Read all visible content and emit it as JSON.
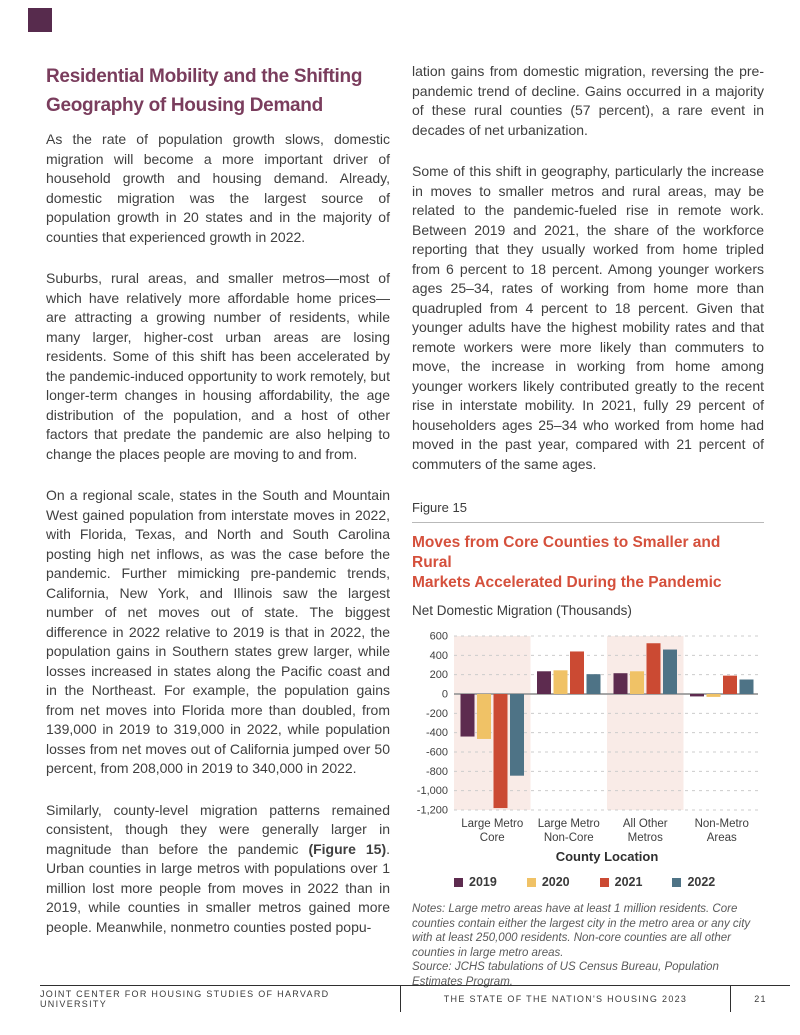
{
  "colors": {
    "heading": "#7a3d5d",
    "corner_marker": "#572b4d",
    "figure_title": "#d5503c",
    "body_text": "#3f3f3f"
  },
  "article": {
    "heading": {
      "line1": "Residential Mobility and the Shifting",
      "line2": "Geography of Housing Demand"
    },
    "left_column": {
      "p1": "As the rate of population growth slows, domestic migration will become a more important driver of household growth and housing demand. Already, domestic migration was the largest source of population growth in 20 states and in the majority of counties that experienced growth in 2022.",
      "p2": "Suburbs, rural areas, and smaller metros—most of which have relatively more affordable home prices—are attracting a growing number of residents, while many larger, higher-cost urban areas are losing residents. Some of this shift has been accelerated by the pandemic-induced opportunity to work remotely, but longer-term changes in housing affordability, the age distribution of the population, and a host of other factors that predate the pandemic are also helping to change the places people are moving to and from.",
      "p3": "On a regional scale, states in the South and Mountain West gained population from interstate moves in 2022, with Florida, Texas, and North and South Carolina posting high net inflows, as was the case before the pandemic. Further mimicking pre-pandemic trends, California, New York, and Illinois saw the largest number of net moves out of state. The biggest difference in 2022 relative to 2019 is that in 2022, the population gains in Southern states grew larger, while losses increased in states along the Pacific coast and in the Northeast. For example, the population gains from net moves into Florida more than doubled, from 139,000 in 2019 to 319,000 in 2022, while population losses from net moves out of California jumped over 50 percent, from 208,000 in 2019 to 340,000 in 2022.",
      "p4_pre": "Similarly, county-level migration patterns remained consistent, though they were generally larger in magnitude than before the pandemic ",
      "p4_bold": "(Figure 15)",
      "p4_post": ". Urban counties in large metros with populations over 1 million lost more people from moves in 2022 than in 2019, while counties in smaller metros gained more people. Meanwhile, nonmetro counties posted popu-"
    },
    "right_column": {
      "p1": "lation gains from domestic migration, reversing the pre-pandemic trend of decline. Gains occurred in a majority of these rural counties (57 percent), a rare event in decades of net urbanization.",
      "p2": "Some of this shift in geography, particularly the increase in moves to smaller metros and rural areas, may be related to the pandemic-fueled rise in remote work. Between 2019 and 2021, the share of the workforce reporting that they usually worked from home tripled from 6 percent to 18 percent. Among younger workers ages 25–34, rates of working from home more than quadrupled from 4 percent to 18 percent. Given that younger adults have the highest mobility rates and that remote workers were more likely than commuters to move, the increase in working from home among younger workers likely contributed greatly to the recent rise in interstate mobility. In 2021, fully 29 percent of householders ages 25–34 who worked from home had moved in the past year, compared with 21 percent of commuters of the same ages."
    }
  },
  "figure": {
    "label": "Figure 15",
    "title_line1": "Moves from Core Counties to Smaller and Rural",
    "title_line2": "Markets Accelerated During the Pandemic",
    "subtitle": "Net Domestic Migration (Thousands)",
    "notes": "Notes: Large metro areas have at least 1 million residents. Core counties contain either the largest city in the metro area or any city with at least 250,000 residents. Non-core counties are all other counties in large metro areas.",
    "source": "Source: JCHS tabulations of US Census Bureau, Population Estimates Program."
  },
  "chart_data": {
    "type": "bar",
    "title": "Moves from Core Counties to Smaller and Rural Markets Accelerated During the Pandemic",
    "ylabel": "Net Domestic Migration (Thousands)",
    "xlabel": "County Location",
    "categories": [
      "Large Metro\nCore",
      "Large Metro\nNon-Core",
      "All Other\nMetros",
      "Non-Metro\nAreas"
    ],
    "series": [
      {
        "name": "2019",
        "color": "#5d2b4f",
        "values": [
          -440,
          235,
          215,
          -25
        ]
      },
      {
        "name": "2020",
        "color": "#f0c266",
        "values": [
          -465,
          245,
          235,
          -30
        ]
      },
      {
        "name": "2021",
        "color": "#cb4a33",
        "values": [
          -1180,
          440,
          525,
          190
        ]
      },
      {
        "name": "2022",
        "color": "#4e7386",
        "values": [
          -845,
          205,
          460,
          150
        ]
      }
    ],
    "ylim": [
      -1200,
      600
    ],
    "ytick_step": 200,
    "grid": "dashed-horizontal",
    "highlight_band_groups": [
      0,
      2
    ],
    "band_color": "#f9ebe7",
    "legend_position": "bottom"
  },
  "footer": {
    "left": "JOINT CENTER FOR HOUSING STUDIES OF HARVARD UNIVERSITY",
    "center": "THE STATE OF THE NATION'S HOUSING 2023",
    "page": "21"
  }
}
